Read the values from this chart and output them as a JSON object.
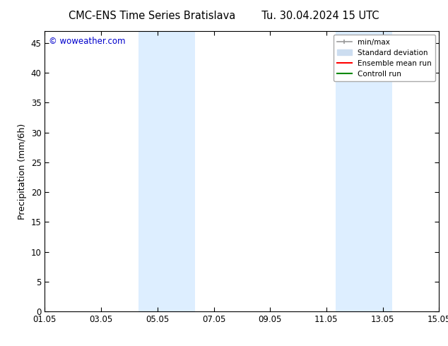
{
  "title_left": "CMC-ENS Time Series Bratislava",
  "title_right": "Tu. 30.04.2024 15 UTC",
  "ylabel": "Precipitation (mm/6h)",
  "ylim": [
    0,
    47
  ],
  "yticks": [
    0,
    5,
    10,
    15,
    20,
    25,
    30,
    35,
    40,
    45
  ],
  "xtick_labels": [
    "01.05",
    "03.05",
    "05.05",
    "07.05",
    "09.05",
    "11.05",
    "13.05",
    "15.05"
  ],
  "xtick_positions": [
    0,
    2,
    4,
    6,
    8,
    10,
    12,
    14
  ],
  "xlim": [
    0,
    14
  ],
  "shaded_bands": [
    {
      "x_start": 3.33,
      "x_end": 5.33
    },
    {
      "x_start": 10.33,
      "x_end": 12.33
    }
  ],
  "shade_color": "#ddeeff",
  "watermark_text": "© woweather.com",
  "watermark_color": "#0000cc",
  "bg_color": "#ffffff",
  "axis_color": "#000000",
  "title_fontsize": 10.5,
  "tick_fontsize": 8.5,
  "ylabel_fontsize": 9,
  "watermark_fontsize": 8.5,
  "legend_fontsize": 7.5,
  "minmax_color": "#999999",
  "stddev_color": "#ccddf0",
  "ensemble_color": "#ff0000",
  "control_color": "#008800"
}
